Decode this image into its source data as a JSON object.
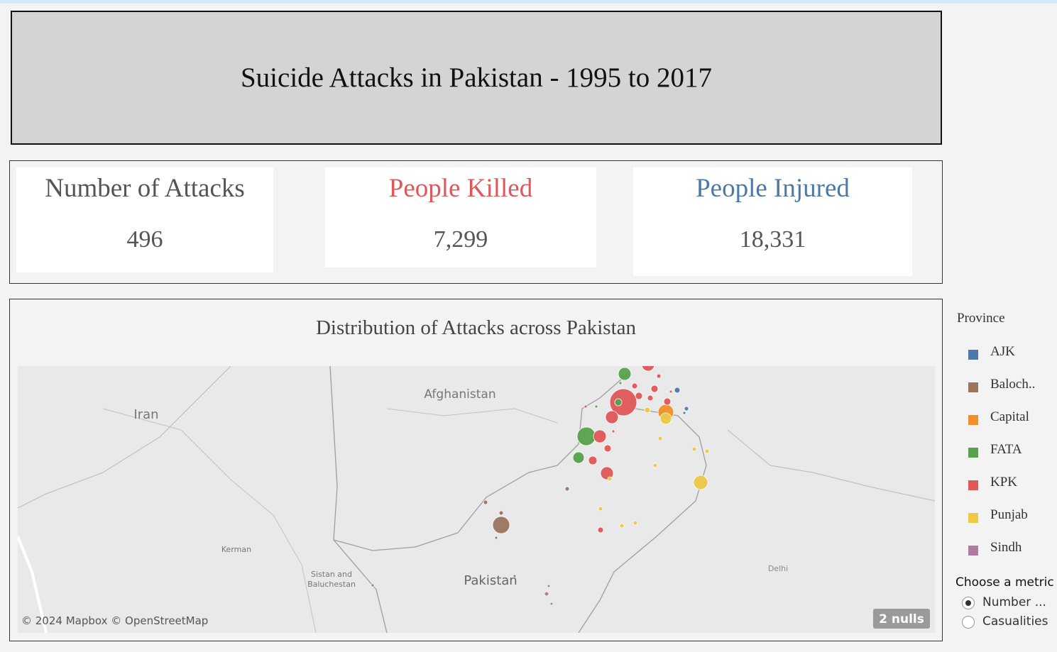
{
  "header": {
    "title": "Suicide Attacks in Pakistan - 1995 to 2017"
  },
  "kpis": [
    {
      "label": "Number of Attacks",
      "value": "496",
      "color": "#555555"
    },
    {
      "label": "People Killed",
      "value": "7,299",
      "color": "#e15759"
    },
    {
      "label": "People Injured",
      "value": "18,331",
      "color": "#4e79a7"
    }
  ],
  "map": {
    "title": "Distribution of Attacks across Pakistan",
    "place_labels": [
      "Afghanistan",
      "Iran",
      "Pakistan",
      "Kerman",
      "Sistan and",
      "Baluchestan",
      "Delhi"
    ],
    "attribution": "© 2024 Mapbox © OpenStreetMap",
    "nulls": "2 nulls"
  },
  "legend": {
    "title": "Province",
    "items": [
      {
        "name": "AJK",
        "color": "#4e79a7"
      },
      {
        "name": "Baloch..",
        "color": "#9c755f"
      },
      {
        "name": "Capital",
        "color": "#f28e2b"
      },
      {
        "name": "FATA",
        "color": "#59a14f"
      },
      {
        "name": "KPK",
        "color": "#e15759"
      },
      {
        "name": "Punjab",
        "color": "#edc948"
      },
      {
        "name": "Sindh",
        "color": "#b07aa1"
      }
    ]
  },
  "metric": {
    "title": "Choose a metric",
    "options": [
      "Number ...",
      "Casualities"
    ],
    "selected": 0
  }
}
